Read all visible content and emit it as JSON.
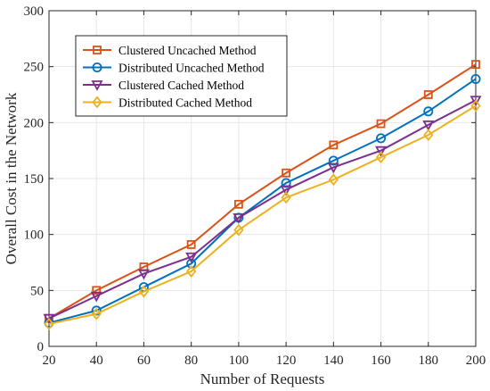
{
  "chart_data": {
    "type": "line",
    "title": "",
    "xlabel": "Number of Requests",
    "ylabel": "Overall Cost in the Network",
    "x": [
      20,
      40,
      60,
      80,
      100,
      120,
      140,
      160,
      180,
      200
    ],
    "xlim": [
      20,
      200
    ],
    "ylim": [
      0,
      300
    ],
    "xticks": [
      20,
      40,
      60,
      80,
      100,
      120,
      140,
      160,
      180,
      200
    ],
    "yticks": [
      0,
      50,
      100,
      150,
      200,
      250,
      300
    ],
    "grid": true,
    "legend_position": "top-left",
    "series": [
      {
        "name": "Clustered Uncached Method",
        "marker": "square",
        "color": "#D95319",
        "values": [
          25,
          50,
          71,
          91,
          127,
          155,
          180,
          199,
          225,
          252
        ]
      },
      {
        "name": "Distributed Uncached Method",
        "marker": "circle",
        "color": "#0072BD",
        "values": [
          21,
          32,
          53,
          74,
          115,
          146,
          166,
          186,
          210,
          239
        ]
      },
      {
        "name": "Clustered Cached Method",
        "marker": "triangle-down",
        "color": "#7E2F8E",
        "values": [
          25,
          45,
          65,
          80,
          115,
          140,
          160,
          175,
          198,
          220
        ]
      },
      {
        "name": "Distributed Cached Method",
        "marker": "diamond",
        "color": "#EDB120",
        "values": [
          20,
          29,
          49,
          67,
          104,
          133,
          149,
          169,
          189,
          215
        ]
      }
    ]
  }
}
